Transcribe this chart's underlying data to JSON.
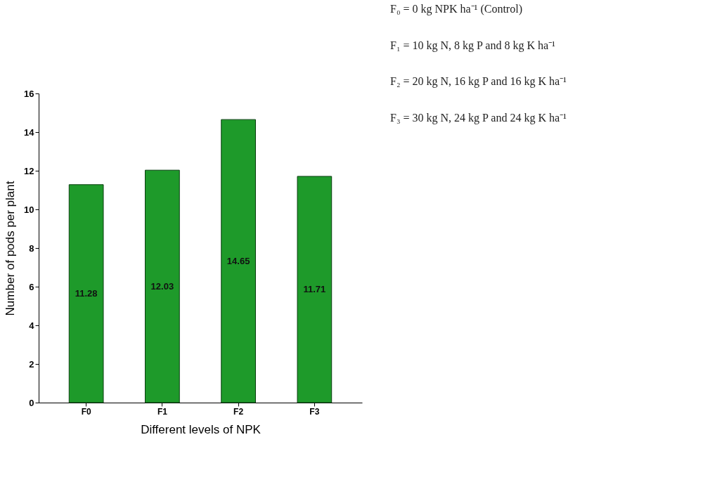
{
  "chart_data": {
    "type": "bar",
    "xlabel": "Different levels of NPK",
    "ylabel": "Number of pods per plant",
    "categories": [
      "F0",
      "F1",
      "F2",
      "F3"
    ],
    "values": [
      11.28,
      12.03,
      14.65,
      11.71
    ],
    "color": "#1e9a2a",
    "ylim": [
      0,
      16
    ],
    "yticks": [
      0,
      2,
      4,
      6,
      8,
      10,
      12,
      14,
      16
    ],
    "grid": false,
    "data_labels": true,
    "annotations": [
      "F₀ = 0 kg NPK ha⁻¹ (Control)",
      "F₁ = 10 kg N, 8 kg P and 8 kg K ha⁻¹",
      "F₂ = 20 kg N, 16 kg P and 16 kg K ha⁻¹",
      "F₃ = 30 kg N, 24 kg P and 24 kg K ha⁻¹"
    ]
  }
}
